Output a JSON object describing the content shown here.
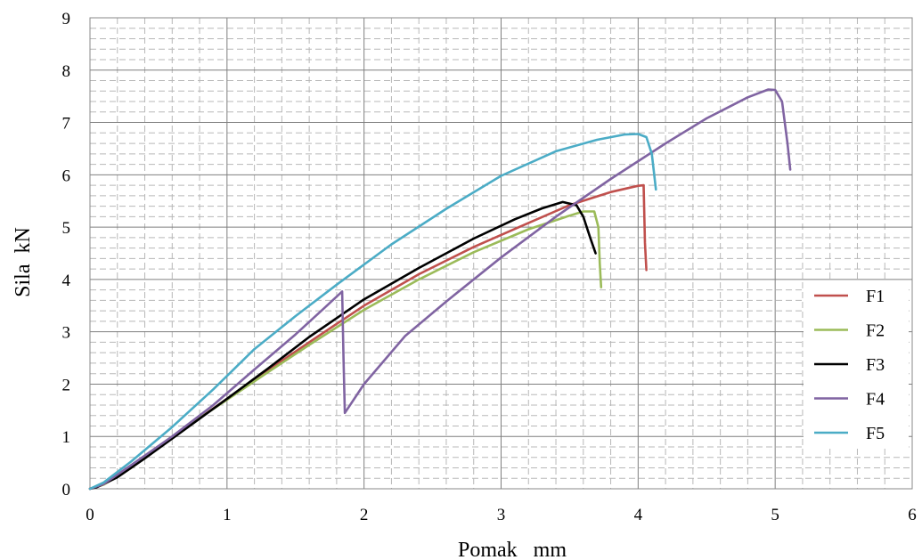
{
  "chart_data": {
    "type": "line",
    "title": "",
    "xlabel": "Pomak   mm",
    "ylabel": "Sila  kN",
    "xlim": [
      0,
      6
    ],
    "ylim": [
      0,
      9
    ],
    "xticks": [
      "0",
      "1",
      "2",
      "3",
      "4",
      "5",
      "6"
    ],
    "yticks": [
      "0",
      "1",
      "2",
      "3",
      "4",
      "5",
      "6",
      "7",
      "8",
      "9"
    ],
    "grid": true,
    "legend_position": "right",
    "series": [
      {
        "name": "F1",
        "color": "#c0504d",
        "points": [
          [
            0,
            0
          ],
          [
            0.1,
            0.08
          ],
          [
            0.3,
            0.4
          ],
          [
            0.5,
            0.8
          ],
          [
            0.8,
            1.35
          ],
          [
            1.0,
            1.72
          ],
          [
            1.3,
            2.27
          ],
          [
            1.6,
            2.8
          ],
          [
            2.0,
            3.5
          ],
          [
            2.4,
            4.1
          ],
          [
            2.8,
            4.62
          ],
          [
            3.2,
            5.08
          ],
          [
            3.5,
            5.42
          ],
          [
            3.8,
            5.67
          ],
          [
            4.0,
            5.79
          ],
          [
            4.04,
            5.8
          ],
          [
            4.05,
            4.7
          ],
          [
            4.06,
            4.18
          ]
        ]
      },
      {
        "name": "F2",
        "color": "#9bbb59",
        "points": [
          [
            0,
            0
          ],
          [
            0.1,
            0.08
          ],
          [
            0.3,
            0.4
          ],
          [
            0.5,
            0.8
          ],
          [
            0.8,
            1.35
          ],
          [
            1.0,
            1.7
          ],
          [
            1.3,
            2.23
          ],
          [
            1.6,
            2.75
          ],
          [
            2.0,
            3.42
          ],
          [
            2.4,
            4.0
          ],
          [
            2.8,
            4.52
          ],
          [
            3.2,
            4.96
          ],
          [
            3.5,
            5.22
          ],
          [
            3.6,
            5.3
          ],
          [
            3.68,
            5.3
          ],
          [
            3.71,
            5.0
          ],
          [
            3.72,
            4.3
          ],
          [
            3.73,
            3.85
          ]
        ]
      },
      {
        "name": "F3",
        "color": "#000000",
        "points": [
          [
            0,
            0
          ],
          [
            0.05,
            0.03
          ],
          [
            0.2,
            0.22
          ],
          [
            0.4,
            0.58
          ],
          [
            0.7,
            1.15
          ],
          [
            1.0,
            1.72
          ],
          [
            1.3,
            2.3
          ],
          [
            1.6,
            2.9
          ],
          [
            2.0,
            3.62
          ],
          [
            2.4,
            4.22
          ],
          [
            2.8,
            4.78
          ],
          [
            3.1,
            5.15
          ],
          [
            3.3,
            5.36
          ],
          [
            3.45,
            5.48
          ],
          [
            3.55,
            5.42
          ],
          [
            3.6,
            5.2
          ],
          [
            3.65,
            4.8
          ],
          [
            3.69,
            4.5
          ]
        ]
      },
      {
        "name": "F4",
        "color": "#8064a2",
        "points": [
          [
            0,
            0
          ],
          [
            0.1,
            0.09
          ],
          [
            0.3,
            0.45
          ],
          [
            0.6,
            1.0
          ],
          [
            0.9,
            1.6
          ],
          [
            1.2,
            2.28
          ],
          [
            1.5,
            2.95
          ],
          [
            1.7,
            3.43
          ],
          [
            1.84,
            3.77
          ],
          [
            1.85,
            2.5
          ],
          [
            1.86,
            1.45
          ],
          [
            2.0,
            2.0
          ],
          [
            2.3,
            2.92
          ],
          [
            2.6,
            3.58
          ],
          [
            3.0,
            4.42
          ],
          [
            3.4,
            5.2
          ],
          [
            3.8,
            5.92
          ],
          [
            4.2,
            6.6
          ],
          [
            4.5,
            7.08
          ],
          [
            4.8,
            7.48
          ],
          [
            4.95,
            7.63
          ],
          [
            5.0,
            7.62
          ],
          [
            5.05,
            7.4
          ],
          [
            5.09,
            6.6
          ],
          [
            5.11,
            6.1
          ]
        ]
      },
      {
        "name": "F5",
        "color": "#4bacc6",
        "points": [
          [
            0,
            0
          ],
          [
            0.1,
            0.12
          ],
          [
            0.3,
            0.52
          ],
          [
            0.6,
            1.18
          ],
          [
            0.9,
            1.9
          ],
          [
            1.2,
            2.67
          ],
          [
            1.5,
            3.3
          ],
          [
            1.8,
            3.9
          ],
          [
            2.2,
            4.67
          ],
          [
            2.6,
            5.35
          ],
          [
            3.0,
            5.98
          ],
          [
            3.4,
            6.45
          ],
          [
            3.7,
            6.67
          ],
          [
            3.9,
            6.77
          ],
          [
            4.0,
            6.78
          ],
          [
            4.06,
            6.72
          ],
          [
            4.1,
            6.4
          ],
          [
            4.13,
            5.72
          ]
        ]
      }
    ]
  }
}
